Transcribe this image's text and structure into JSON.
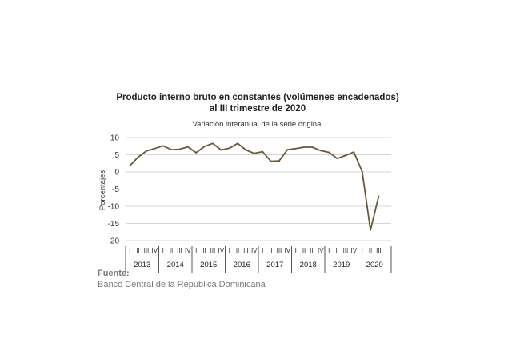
{
  "chart_data": {
    "type": "line",
    "title_lines": [
      "Producto interno bruto en constantes (volúmenes encadenados)",
      "al III trimestre de 2020"
    ],
    "subtitle": "Variación interanual de la serie original",
    "ylabel": "Porcentajes",
    "ylim": [
      -20,
      10
    ],
    "yticks": [
      10,
      5,
      0,
      -5,
      -10,
      -15,
      -20
    ],
    "grid": true,
    "years": [
      "2013",
      "2014",
      "2015",
      "2016",
      "2017",
      "2018",
      "2019",
      "2020"
    ],
    "quarter_labels": [
      "I",
      "II",
      "III",
      "IV"
    ],
    "categories": [
      "2013-I",
      "2013-II",
      "2013-III",
      "2013-IV",
      "2014-I",
      "2014-II",
      "2014-III",
      "2014-IV",
      "2015-I",
      "2015-II",
      "2015-III",
      "2015-IV",
      "2016-I",
      "2016-II",
      "2016-III",
      "2016-IV",
      "2017-I",
      "2017-II",
      "2017-III",
      "2017-IV",
      "2018-I",
      "2018-II",
      "2018-III",
      "2018-IV",
      "2019-I",
      "2019-II",
      "2019-III",
      "2019-IV",
      "2020-I",
      "2020-II",
      "2020-III"
    ],
    "series": [
      {
        "color": "#6b5738",
        "values": [
          1.8,
          4.3,
          6.1,
          6.8,
          7.6,
          6.5,
          6.6,
          7.3,
          5.6,
          7.4,
          8.3,
          6.4,
          6.9,
          8.3,
          6.4,
          5.4,
          5.9,
          3.1,
          3.2,
          6.5,
          6.8,
          7.2,
          7.2,
          6.2,
          5.7,
          3.9,
          4.8,
          5.8,
          0.1,
          -16.9,
          -7.1
        ]
      }
    ]
  },
  "source": {
    "label": "Fuente:",
    "text": "Banco Central de la República Dominicana"
  }
}
